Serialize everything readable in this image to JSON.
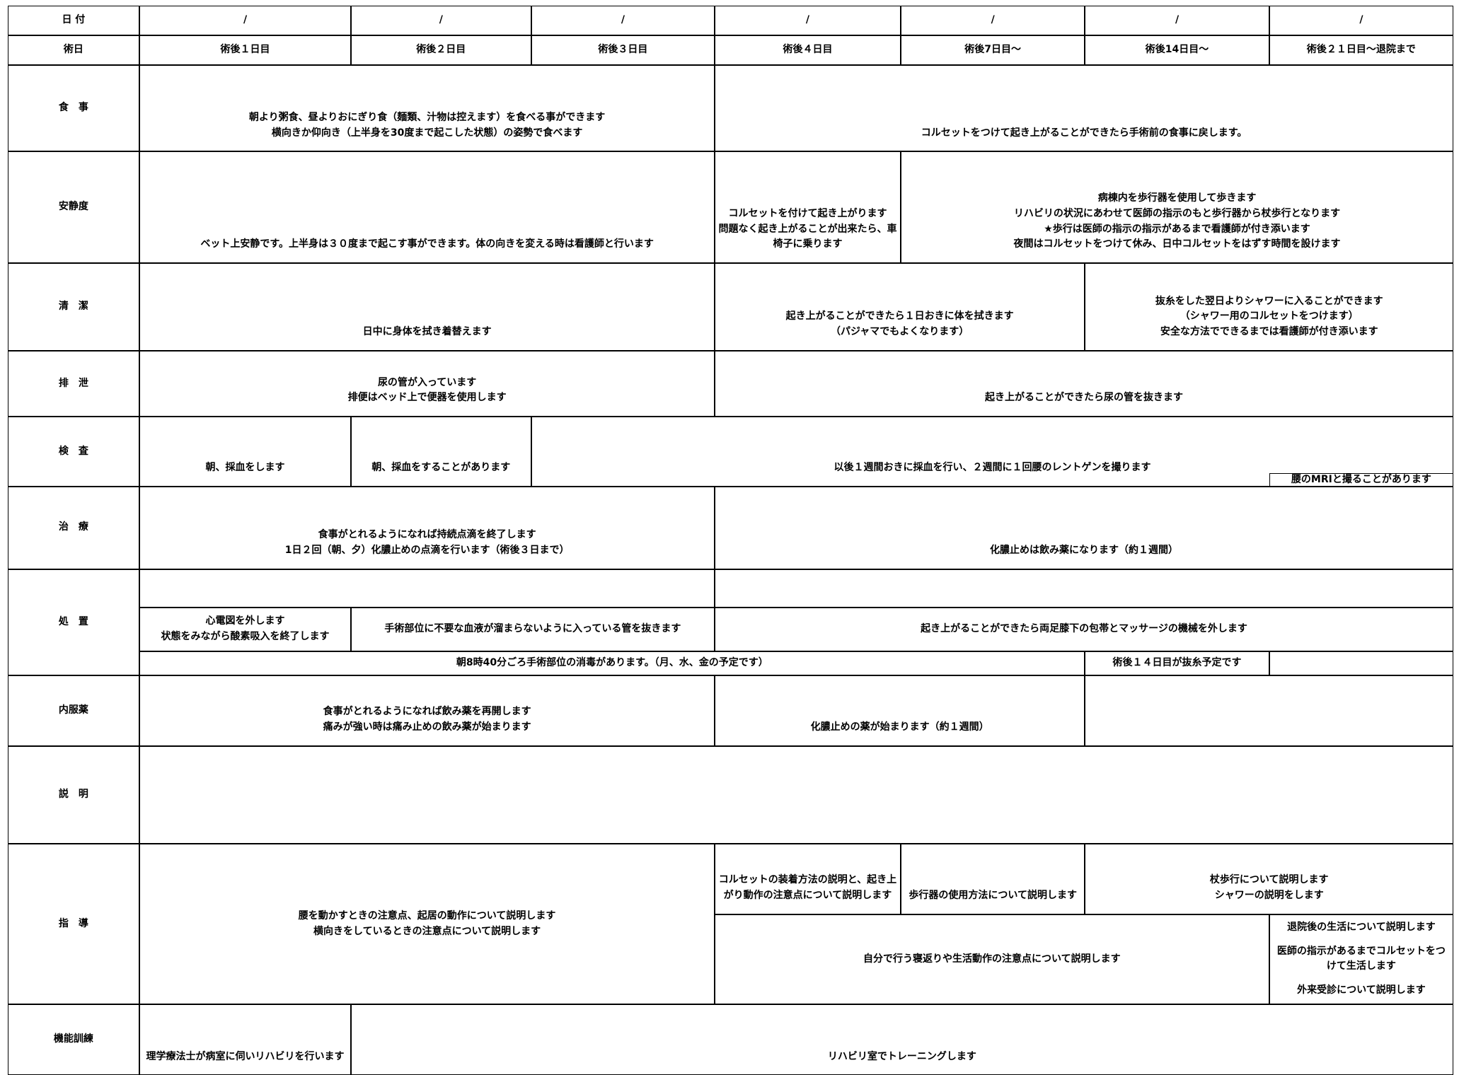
{
  "header": {
    "date_label": "日 付",
    "dates": [
      "/",
      "/",
      "/",
      "/",
      "/",
      "/",
      "/"
    ],
    "day_label": "術日",
    "days": [
      "術後１日目",
      "術後２日目",
      "術後３日目",
      "術後４日目",
      "術後7日目～",
      "術後14日目～",
      "術後２１日目～退院まで"
    ]
  },
  "rows": [
    {
      "label": "食　事",
      "cells": [
        [
          "朝より粥食、昼よりおにぎり食（麺類、汁物は控えます）を食べる事ができます",
          "横向きか仰向き（上半身を30度まで起こした状態）の姿勢で食べます"
        ],
        [
          "コルセットをつけて起き上がることができたら手術前の食事に戻します。"
        ]
      ]
    },
    {
      "label": "安静度",
      "cells": [
        [
          "ベット上安静です。上半身は３０度まで起こす事ができます。体の向きを変える時は看護師と行います"
        ],
        [
          "コルセットを付けて起き上がります",
          "問題なく起き上がることが出来たら、車椅子に乗ります"
        ],
        [
          "病棟内を歩行器を使用して歩きます",
          "リハビリの状況にあわせて医師の指示のもと歩行器から杖歩行となります",
          "★歩行は医師の指示の指示があるまで看護師が付き添います",
          "夜間はコルセットをつけて休み、日中コルセットをはずす時間を設けます"
        ]
      ]
    },
    {
      "label": "清　潔",
      "cells": [
        [
          "日中に身体を拭き着替えます"
        ],
        [
          "起き上がることができたら１日おきに体を拭きます",
          "（パジャマでもよくなります）"
        ],
        [
          "抜糸をした翌日よりシャワーに入ることができます",
          "（シャワー用のコルセットをつけます）",
          "安全な方法でできるまでは看護師が付き添います"
        ]
      ]
    },
    {
      "label": "排　泄",
      "cells": [
        [
          "尿の管が入っています",
          "排便はベッド上で便器を使用します"
        ],
        [
          "起き上がることができたら尿の管を抜きます"
        ]
      ]
    },
    {
      "label": "検　査",
      "cells": [
        [
          "朝、採血をします"
        ],
        [
          "朝、採血をすることがあります"
        ],
        [
          "以後１週間おきに採血を行い、２週間に１回腰のレントゲンを撮ります"
        ],
        [
          "腰のMRIと撮ることがあります"
        ]
      ]
    },
    {
      "label": "治　療",
      "cells": [
        [
          "食事がとれるようになれば持続点滴を終了します",
          "1日２回（朝、夕）化膿止めの点滴を行います（術後３日まで）"
        ],
        [
          "化膿止めは飲み薬になります（約１週間）"
        ]
      ]
    },
    {
      "label": "処　置",
      "cells": [
        [
          "心電図を外します",
          "状態をみながら酸素吸入を終了します"
        ],
        [
          "手術部位に不要な血液が溜まらないように入っている管を抜きます"
        ],
        [
          "起き上がることができたら両足膝下の包帯とマッサージの機械を外します"
        ],
        [
          "朝8時40分ごろ手術部位の消毒があります。（月、水、金の予定です）"
        ],
        [
          "術後１４日目が抜糸予定です"
        ]
      ]
    },
    {
      "label": "内服薬",
      "cells": [
        [
          "食事がとれるようになれば飲み薬を再開します",
          "痛みが強い時は痛み止めの飲み薬が始まります"
        ],
        [
          "化膿止めの薬が始まります（約１週間）"
        ]
      ]
    },
    {
      "label": "説　明",
      "cells": []
    },
    {
      "label": "指　導",
      "cells": [
        [
          "腰を動かすときの注意点、起居の動作について説明します",
          "横向きをしているときの注意点について説明します"
        ],
        [
          "コルセットの装着方法の説明と、起き上がり動作の注意点について説明します"
        ],
        [
          "歩行器の使用方法について説明します"
        ],
        [
          "杖歩行について説明します",
          "シャワーの説明をします"
        ],
        [
          "自分で行う寝返りや生活動作の注意点について説明します"
        ],
        [
          "退院後の生活について説明します",
          "医師の指示があるまでコルセットをつけて生活します",
          "外来受診について説明します"
        ]
      ]
    },
    {
      "label": "機能訓練",
      "cells": [
        [
          "理学療法士が病室に伺いリハビリを行います"
        ],
        [
          "リハビリ室でトレーニングします"
        ]
      ]
    }
  ]
}
